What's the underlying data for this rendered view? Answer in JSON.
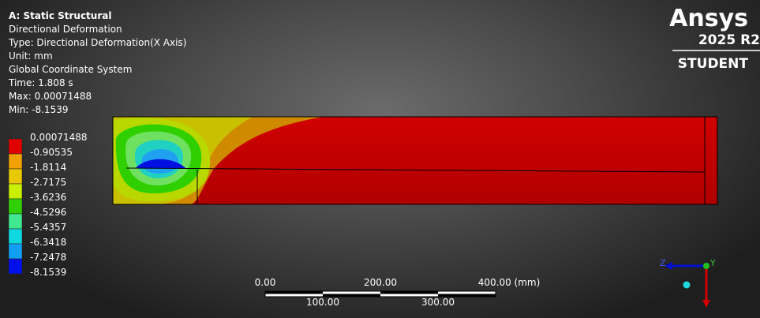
{
  "header": {
    "title": "A: Static Structural",
    "lines": [
      "Directional Deformation",
      "Type: Directional Deformation(X Axis)",
      "Unit: mm",
      "Global Coordinate System",
      "Time: 1.808 s",
      "Max: 0.00071488",
      "Min: -8.1539"
    ]
  },
  "legend": {
    "labels": [
      "0.00071488",
      "-0.90535",
      "-1.8114",
      "-2.7175",
      "-3.6236",
      "-4.5296",
      "-5.4357",
      "-6.3418",
      "-7.2478",
      "-8.1539"
    ]
  },
  "scale_bar": {
    "top_labels": [
      "0.00",
      "200.00",
      "400.00 (mm)"
    ],
    "bottom_labels": [
      "100.00",
      "300.00"
    ]
  },
  "logo": {
    "brand": "Ansys",
    "version": "2025 R2",
    "edition": "STUDENT"
  },
  "triad": {
    "z": "Z",
    "y": "Y"
  }
}
